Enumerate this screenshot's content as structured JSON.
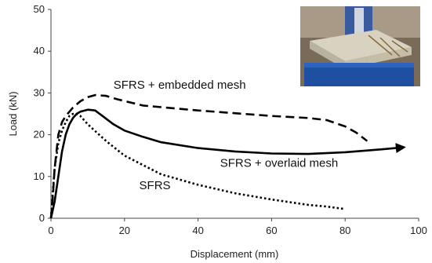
{
  "chart_data": {
    "type": "line",
    "xlabel": "Displacement (mm)",
    "ylabel": "Load (kN)",
    "xlim": [
      0,
      100
    ],
    "ylim": [
      0,
      50
    ],
    "xticks": [
      0,
      20,
      40,
      60,
      80,
      100
    ],
    "yticks": [
      0,
      10,
      20,
      30,
      40,
      50
    ],
    "grid": false,
    "inset_photo": "photo of test specimen on loading frame (top-right)",
    "series": [
      {
        "name": "SFRS + embedded mesh",
        "style": "dashed",
        "color": "#000000",
        "points": [
          [
            0,
            0
          ],
          [
            0.5,
            5
          ],
          [
            1,
            12
          ],
          [
            2,
            20
          ],
          [
            3,
            23
          ],
          [
            4,
            24.5
          ],
          [
            5,
            25.5
          ],
          [
            6,
            26.5
          ],
          [
            8,
            28
          ],
          [
            10,
            29
          ],
          [
            12,
            29.5
          ],
          [
            15,
            29.3
          ],
          [
            18,
            28.5
          ],
          [
            25,
            27
          ],
          [
            40,
            25.8
          ],
          [
            60,
            24.5
          ],
          [
            70,
            24
          ],
          [
            75,
            23.5
          ],
          [
            80,
            22
          ],
          [
            83,
            20.5
          ],
          [
            86,
            18.5
          ]
        ]
      },
      {
        "name": "SFRS + overlaid mesh",
        "style": "solid",
        "color": "#000000",
        "points": [
          [
            0,
            0
          ],
          [
            1,
            4
          ],
          [
            2,
            10
          ],
          [
            3,
            16
          ],
          [
            4,
            20
          ],
          [
            5,
            22.5
          ],
          [
            6,
            24
          ],
          [
            7,
            25
          ],
          [
            8,
            25.5
          ],
          [
            10,
            26
          ],
          [
            12,
            25.8
          ],
          [
            14,
            24.5
          ],
          [
            17,
            22.5
          ],
          [
            20,
            21
          ],
          [
            25,
            19.5
          ],
          [
            30,
            18.2
          ],
          [
            40,
            16.8
          ],
          [
            50,
            16
          ],
          [
            60,
            15.5
          ],
          [
            70,
            15.4
          ],
          [
            80,
            15.8
          ],
          [
            90,
            16.5
          ],
          [
            96,
            17
          ]
        ],
        "arrow_end": true
      },
      {
        "name": "SFRS",
        "style": "dotted",
        "color": "#000000",
        "points": [
          [
            0,
            0
          ],
          [
            0.5,
            6
          ],
          [
            1,
            12
          ],
          [
            2,
            18
          ],
          [
            3,
            21
          ],
          [
            4,
            23
          ],
          [
            5,
            24.5
          ],
          [
            6,
            25
          ],
          [
            7,
            25
          ],
          [
            8,
            24.5
          ],
          [
            10,
            22.5
          ],
          [
            15,
            18.5
          ],
          [
            20,
            15
          ],
          [
            30,
            10.5
          ],
          [
            40,
            8
          ],
          [
            50,
            6
          ],
          [
            60,
            4.5
          ],
          [
            70,
            3.2
          ],
          [
            75,
            2.8
          ],
          [
            80,
            2.2
          ]
        ]
      }
    ],
    "annotations": [
      {
        "text": "SFRS + embedded mesh",
        "x": 17,
        "y": 31,
        "anchor": "start"
      },
      {
        "text": "SFRS + overlaid mesh",
        "x": 46,
        "y": 12.3,
        "anchor": "start"
      },
      {
        "text": "SFRS",
        "x": 24,
        "y": 7,
        "anchor": "start"
      }
    ]
  }
}
